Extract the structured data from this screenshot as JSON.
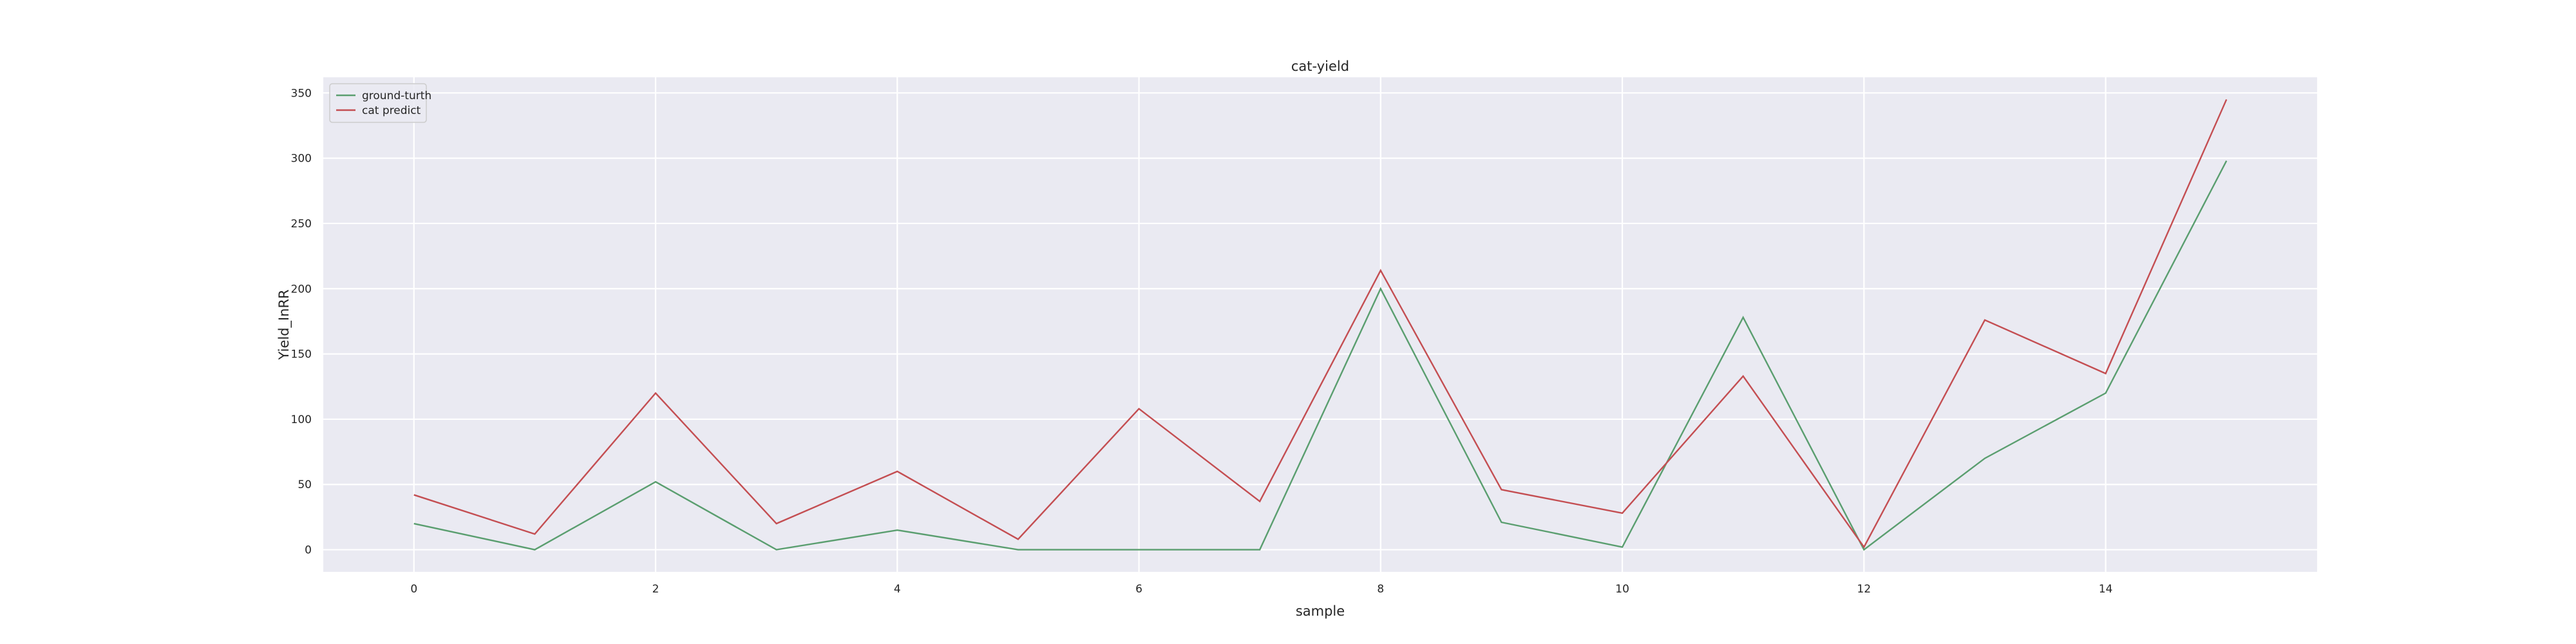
{
  "chart_data": {
    "type": "line",
    "title": "cat-yield",
    "xlabel": "sample",
    "ylabel": "Yield_InRR",
    "xlim": [
      -0.75,
      15.75
    ],
    "ylim": [
      -17,
      362
    ],
    "xticks": [
      0,
      2,
      4,
      6,
      8,
      10,
      12,
      14
    ],
    "yticks": [
      0,
      50,
      100,
      150,
      200,
      250,
      300,
      350
    ],
    "grid": true,
    "legend_position": "top-left",
    "x": [
      0,
      1,
      2,
      3,
      4,
      5,
      6,
      7,
      8,
      9,
      10,
      11,
      12,
      13,
      14,
      15
    ],
    "series": [
      {
        "name": "ground-turth",
        "color": "#5a9e6f",
        "values": [
          20,
          0,
          52,
          0,
          15,
          0,
          0,
          0,
          200,
          21,
          2,
          178,
          0,
          70,
          120,
          298
        ]
      },
      {
        "name": "cat predict",
        "color": "#c44e52",
        "values": [
          42,
          12,
          120,
          20,
          60,
          8,
          108,
          37,
          214,
          46,
          28,
          133,
          2,
          176,
          135,
          345
        ]
      }
    ]
  }
}
